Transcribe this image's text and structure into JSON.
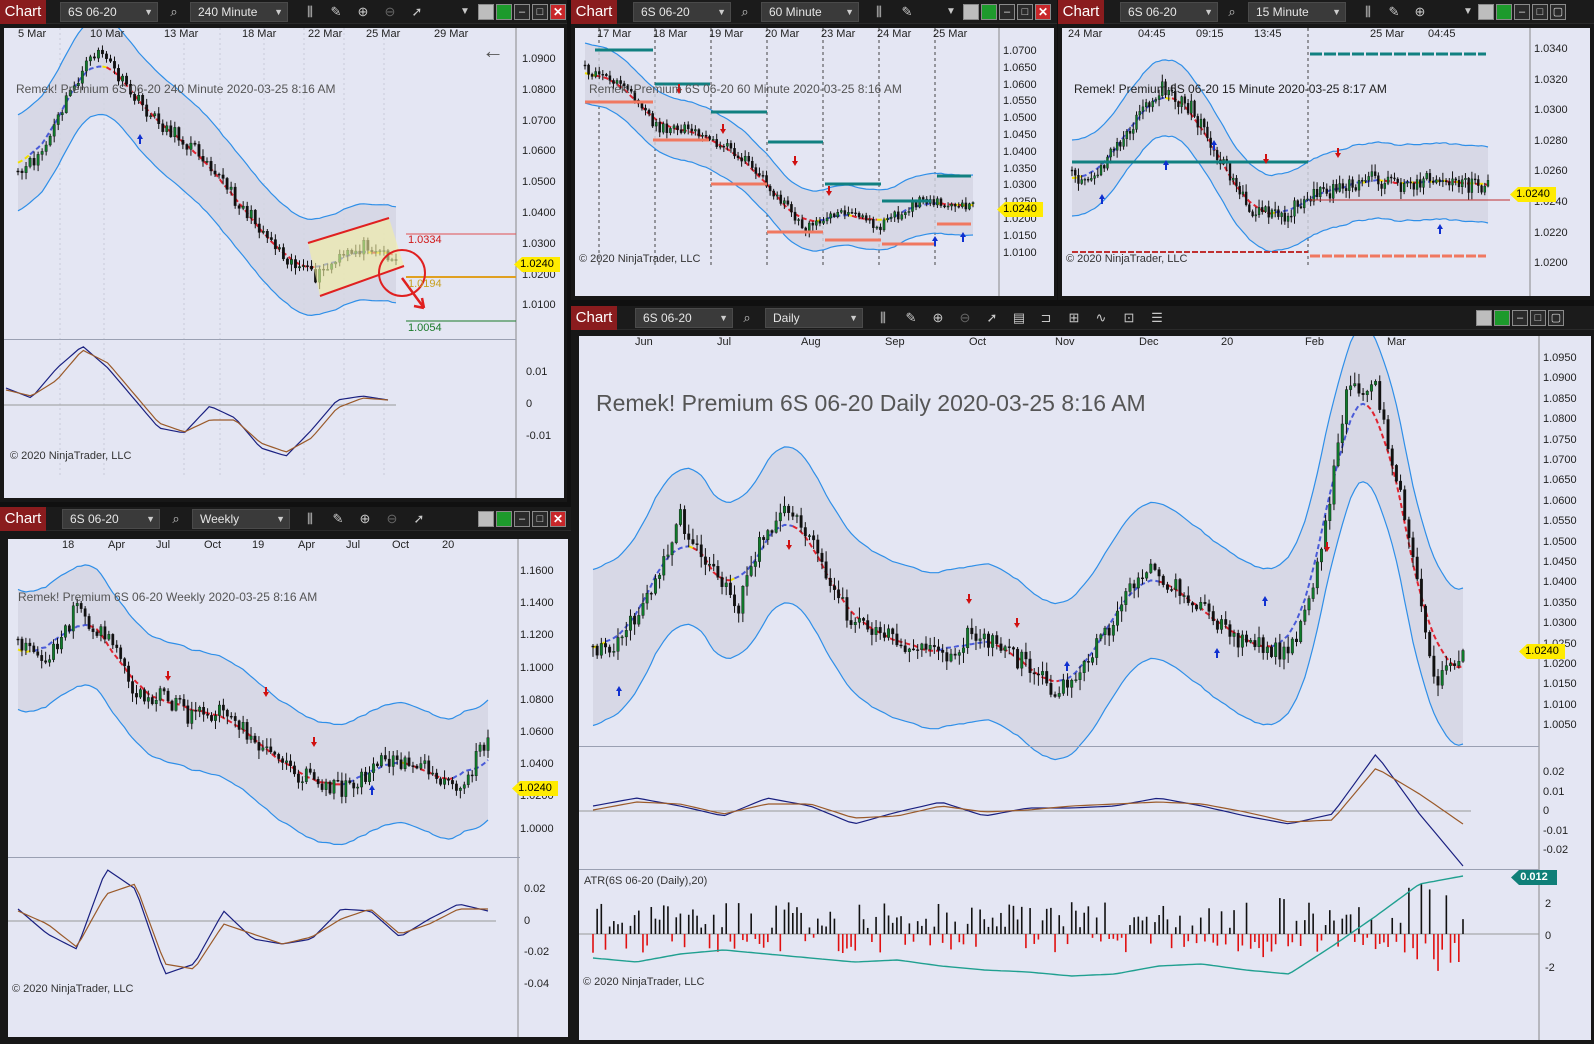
{
  "common": {
    "chart_label": "Chart",
    "instrument": "6S 06-20",
    "copyright": "© 2020 NinjaTrader, LLC",
    "price_marker": "1.0240",
    "colors": {
      "bg": "#e4e6f3",
      "bull": "#0f7a2a",
      "bear": "#111111",
      "band": "#2f8fe8",
      "mid_bull": "#4a5bd8",
      "mid_bear": "#e02430",
      "mid_flat": "#f0e000",
      "osc1": "#1a2080",
      "osc2": "#9a5a2a",
      "atr": "#20a090",
      "atr_up": "#111111",
      "atr_dn": "#e01010",
      "title_bar": "#8a1c1e"
    }
  },
  "w1": {
    "timeframe": "240 Minute",
    "label": "Remek!  Premium  6S 06-20  240 Minute  2020-03-25 8:16 AM",
    "y_ticks": [
      "1.0900",
      "1.0800",
      "1.0700",
      "1.0600",
      "1.0500",
      "1.0400",
      "1.0300",
      "1.0200",
      "1.0100"
    ],
    "osc_ticks": [
      "0.01",
      "0",
      "-0.01"
    ],
    "x_ticks": [
      "5 Mar",
      "10 Mar",
      "13 Mar",
      "18 Mar",
      "22 Mar",
      "25 Mar",
      "29 Mar"
    ],
    "levels": {
      "upper": "1.0334",
      "mid": "1.0194",
      "lower": "1.0054"
    }
  },
  "w2": {
    "timeframe": "60 Minute",
    "label": "Remek!  Premium  6S 06-20  60 Minute  2020-03-25 8:16 AM",
    "y_ticks": [
      "1.0700",
      "1.0650",
      "1.0600",
      "1.0550",
      "1.0500",
      "1.0450",
      "1.0400",
      "1.0350",
      "1.0300",
      "1.0250",
      "1.0200",
      "1.0150",
      "1.0100"
    ],
    "x_ticks": [
      "17 Mar",
      "18 Mar",
      "19 Mar",
      "20 Mar",
      "23 Mar",
      "24 Mar",
      "25 Mar"
    ]
  },
  "w3": {
    "timeframe": "15 Minute",
    "label": "Remek!  Premium  6S 06-20  15 Minute  2020-03-25 8:17 AM",
    "y_ticks": [
      "1.0340",
      "1.0320",
      "1.0300",
      "1.0280",
      "1.0260",
      "1.0240",
      "1.0220",
      "1.0200"
    ],
    "x_ticks": [
      "24 Mar",
      "04:45",
      "09:15",
      "13:45",
      "25 Mar",
      "04:45"
    ]
  },
  "w4": {
    "timeframe": "Weekly",
    "label": "Remek!  Premium  6S 06-20  Weekly  2020-03-25 8:16 AM",
    "y_ticks": [
      "1.1600",
      "1.1400",
      "1.1200",
      "1.1000",
      "1.0800",
      "1.0600",
      "1.0400",
      "1.0200",
      "1.0000"
    ],
    "osc_ticks": [
      "0.02",
      "0",
      "-0.02",
      "-0.04"
    ],
    "x_ticks": [
      "18",
      "Apr",
      "Jul",
      "Oct",
      "19",
      "Apr",
      "Jul",
      "Oct",
      "20"
    ]
  },
  "w5": {
    "timeframe": "Daily",
    "label": "Remek!  Premium  6S 06-20  Daily  2020-03-25 8:16 AM",
    "y_ticks": [
      "1.0950",
      "1.0900",
      "1.0850",
      "1.0800",
      "1.0750",
      "1.0700",
      "1.0650",
      "1.0600",
      "1.0550",
      "1.0500",
      "1.0450",
      "1.0400",
      "1.0350",
      "1.0300",
      "1.0250",
      "1.0200",
      "1.0150",
      "1.0100",
      "1.0050"
    ],
    "osc_ticks": [
      "0.02",
      "0.01",
      "0",
      "-0.01",
      "-0.02"
    ],
    "atr_label": "ATR(6S 06-20 (Daily),20)",
    "atr_value": "0.012",
    "atr_ticks": [
      "2",
      "0",
      "-2"
    ],
    "x_ticks": [
      "Jun",
      "Jul",
      "Aug",
      "Sep",
      "Oct",
      "Nov",
      "Dec",
      "20",
      "Feb",
      "Mar"
    ]
  }
}
